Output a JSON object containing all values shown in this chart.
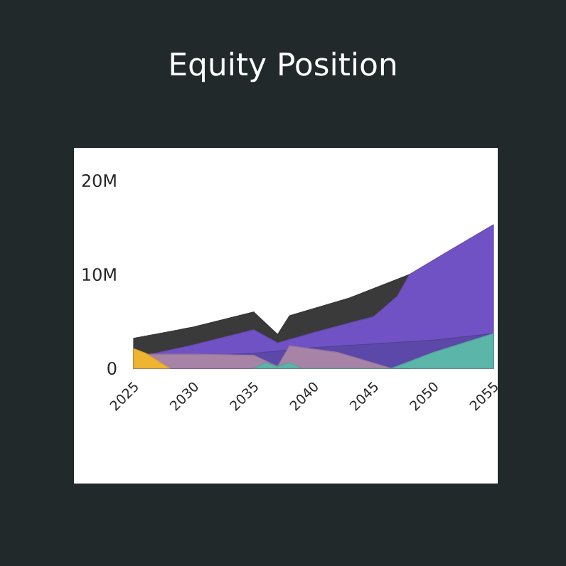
{
  "chart_data": {
    "type": "area",
    "title": "Equity Position",
    "xlim": [
      2025,
      2055
    ],
    "xticks": [
      2025,
      2030,
      2035,
      2040,
      2045,
      2050,
      2055
    ],
    "ylim": [
      0,
      20000000
    ],
    "yticks": [
      0,
      {
        "value": 10000000,
        "label": "10M"
      },
      {
        "value": 20000000,
        "label": "20M"
      }
    ],
    "grid": false,
    "series": [
      {
        "color": "#3a3a3a",
        "x": [
          2025,
          2030,
          2035,
          2037,
          2038,
          2043,
          2048
        ],
        "values": [
          3200000,
          4400000,
          6000000,
          3600000,
          5600000,
          7500000,
          10000000
        ]
      },
      {
        "color": "#7152c4",
        "x": [
          2025,
          2030,
          2035,
          2037,
          2040,
          2045,
          2047,
          2048,
          2051,
          2055
        ],
        "values": [
          1100000,
          2500000,
          4100000,
          2700000,
          3800000,
          5500000,
          7700000,
          10000000,
          12300000,
          15300000
        ]
      },
      {
        "color": "#5b48a8",
        "x": [
          2025,
          2035,
          2040,
          2045,
          2050,
          2055
        ],
        "values": [
          1000000,
          1600000,
          2200000,
          2600000,
          3000000,
          3700000
        ]
      },
      {
        "color": "#a883a8",
        "x": [
          2025,
          2030,
          2035,
          2037,
          2038,
          2042,
          2046.5
        ],
        "values": [
          1500000,
          1500000,
          1400000,
          200000,
          2400000,
          1700000,
          0
        ]
      },
      {
        "color": "#f0b530",
        "x": [
          2025,
          2026,
          2028
        ],
        "values": [
          2100000,
          1600000,
          0
        ]
      },
      {
        "color": "#5bb5a8",
        "x": [
          2035,
          2036,
          2037,
          2038,
          2039,
          2046.5,
          2050,
          2055
        ],
        "values": [
          0,
          600000,
          200000,
          600000,
          0,
          0,
          1700000,
          3700000
        ]
      }
    ]
  }
}
